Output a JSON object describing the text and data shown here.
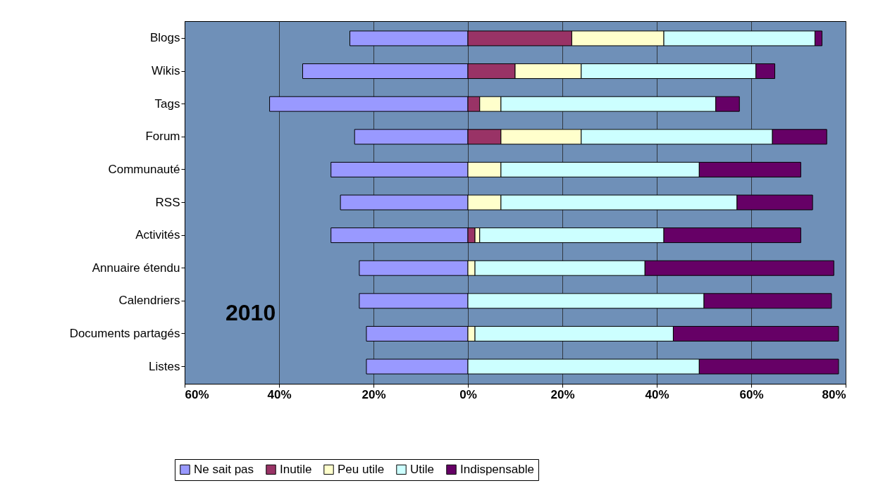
{
  "chart_data": {
    "type": "bar",
    "orientation": "horizontal",
    "stacked": true,
    "categories": [
      "Blogs",
      "Wikis",
      "Tags",
      "Forum",
      "Communauté",
      "RSS",
      "Activités",
      "Annuaire étendu",
      "Calendriers",
      "Documents partagés",
      "Listes"
    ],
    "series": [
      {
        "name": "Ne sait pas",
        "color": "#9999ff",
        "values": [
          -25,
          -35,
          -42,
          -24,
          -29,
          -27,
          -29,
          -23,
          -23,
          -21.5,
          -21.5
        ]
      },
      {
        "name": "Inutile",
        "color": "#993366",
        "values": [
          22,
          10,
          2.5,
          7,
          null,
          null,
          1.5,
          null,
          null,
          null,
          null
        ]
      },
      {
        "name": "Peu utile",
        "color": "#ffffcc",
        "values": [
          19.5,
          14,
          4.5,
          17,
          7,
          7,
          1,
          1.5,
          null,
          1.5,
          null
        ]
      },
      {
        "name": "Utile",
        "color": "#ccffff",
        "values": [
          32,
          37,
          45.5,
          40.5,
          42,
          50,
          39,
          36,
          50,
          42,
          49
        ]
      },
      {
        "name": "Indispensable",
        "color": "#660066",
        "values": [
          1.5,
          4,
          5,
          11.5,
          21.5,
          16,
          29,
          40,
          27,
          35,
          29.5
        ]
      }
    ],
    "xlim": [
      -60,
      80
    ],
    "xticks": [
      {
        "value": -60,
        "label": "60%"
      },
      {
        "value": -40,
        "label": "40%"
      },
      {
        "value": -20,
        "label": "20%"
      },
      {
        "value": 0,
        "label": "0%"
      },
      {
        "value": 20,
        "label": "20%"
      },
      {
        "value": 40,
        "label": "40%"
      },
      {
        "value": 60,
        "label": "60%"
      },
      {
        "value": 80,
        "label": "80%"
      }
    ],
    "grid": "x",
    "legend": "bottom",
    "annotations": [
      "2010"
    ]
  }
}
